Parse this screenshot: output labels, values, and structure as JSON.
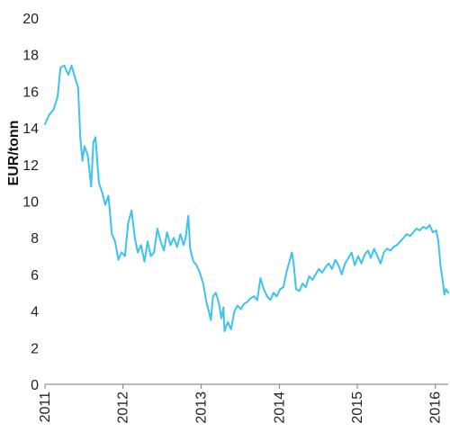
{
  "chart_data": {
    "type": "line",
    "title": "",
    "xlabel": "",
    "ylabel": "EUR/tonn",
    "ylim": [
      0,
      20
    ],
    "yticks": [
      "0",
      "2",
      "4",
      "6",
      "8",
      "10",
      "12",
      "14",
      "16",
      "18",
      "20"
    ],
    "xlim": [
      "2011-01-01",
      "2016-03-01"
    ],
    "xticks": [
      "2011",
      "2012",
      "2013",
      "2014",
      "2015",
      "2016"
    ],
    "grid": false,
    "series": [
      {
        "color": "#3cc3ee",
        "points": [
          [
            "2011-01-01",
            14.2
          ],
          [
            "2011-01-20",
            14.7
          ],
          [
            "2011-02-10",
            15.0
          ],
          [
            "2011-03-01",
            15.7
          ],
          [
            "2011-03-15",
            17.3
          ],
          [
            "2011-04-01",
            17.4
          ],
          [
            "2011-04-20",
            16.9
          ],
          [
            "2011-05-05",
            17.4
          ],
          [
            "2011-05-20",
            16.8
          ],
          [
            "2011-06-05",
            16.2
          ],
          [
            "2011-06-15",
            13.5
          ],
          [
            "2011-06-25",
            12.2
          ],
          [
            "2011-07-05",
            13.0
          ],
          [
            "2011-07-20",
            12.5
          ],
          [
            "2011-08-05",
            10.8
          ],
          [
            "2011-08-15",
            13.2
          ],
          [
            "2011-08-25",
            13.5
          ],
          [
            "2011-09-10",
            11.0
          ],
          [
            "2011-09-25",
            10.5
          ],
          [
            "2011-10-10",
            9.8
          ],
          [
            "2011-10-25",
            10.3
          ],
          [
            "2011-11-10",
            8.2
          ],
          [
            "2011-11-25",
            7.8
          ],
          [
            "2011-12-10",
            6.8
          ],
          [
            "2011-12-25",
            7.2
          ],
          [
            "2012-01-10",
            7.0
          ],
          [
            "2012-01-25",
            8.8
          ],
          [
            "2012-02-10",
            9.5
          ],
          [
            "2012-02-25",
            8.0
          ],
          [
            "2012-03-10",
            7.2
          ],
          [
            "2012-03-25",
            7.6
          ],
          [
            "2012-04-10",
            6.7
          ],
          [
            "2012-04-25",
            7.8
          ],
          [
            "2012-05-10",
            7.0
          ],
          [
            "2012-05-25",
            7.2
          ],
          [
            "2012-06-10",
            8.5
          ],
          [
            "2012-06-25",
            7.8
          ],
          [
            "2012-07-10",
            7.3
          ],
          [
            "2012-07-25",
            8.3
          ],
          [
            "2012-08-10",
            7.6
          ],
          [
            "2012-08-25",
            8.0
          ],
          [
            "2012-09-10",
            7.5
          ],
          [
            "2012-09-25",
            8.2
          ],
          [
            "2012-10-10",
            7.6
          ],
          [
            "2012-10-20",
            8.0
          ],
          [
            "2012-11-01",
            9.2
          ],
          [
            "2012-11-10",
            7.4
          ],
          [
            "2012-11-25",
            6.7
          ],
          [
            "2012-12-10",
            6.5
          ],
          [
            "2012-12-25",
            6.1
          ],
          [
            "2013-01-10",
            5.5
          ],
          [
            "2013-01-25",
            4.5
          ],
          [
            "2013-02-05",
            4.0
          ],
          [
            "2013-02-15",
            3.5
          ],
          [
            "2013-02-25",
            4.8
          ],
          [
            "2013-03-10",
            5.0
          ],
          [
            "2013-03-25",
            4.4
          ],
          [
            "2013-04-05",
            3.6
          ],
          [
            "2013-04-15",
            4.2
          ],
          [
            "2013-04-20",
            2.9
          ],
          [
            "2013-05-05",
            3.4
          ],
          [
            "2013-05-20",
            3.0
          ],
          [
            "2013-06-05",
            4.0
          ],
          [
            "2013-06-20",
            4.3
          ],
          [
            "2013-07-05",
            4.1
          ],
          [
            "2013-07-20",
            4.4
          ],
          [
            "2013-08-05",
            4.5
          ],
          [
            "2013-08-20",
            4.7
          ],
          [
            "2013-09-05",
            4.8
          ],
          [
            "2013-09-20",
            4.6
          ],
          [
            "2013-10-05",
            5.8
          ],
          [
            "2013-10-20",
            5.2
          ],
          [
            "2013-11-05",
            4.8
          ],
          [
            "2013-11-20",
            4.6
          ],
          [
            "2013-12-05",
            5.0
          ],
          [
            "2013-12-20",
            4.8
          ],
          [
            "2014-01-05",
            5.2
          ],
          [
            "2014-01-20",
            5.3
          ],
          [
            "2014-02-05",
            6.2
          ],
          [
            "2014-02-20",
            6.8
          ],
          [
            "2014-03-01",
            7.2
          ],
          [
            "2014-03-10",
            6.5
          ],
          [
            "2014-03-20",
            5.2
          ],
          [
            "2014-04-05",
            5.1
          ],
          [
            "2014-04-20",
            5.5
          ],
          [
            "2014-05-05",
            5.3
          ],
          [
            "2014-05-20",
            5.9
          ],
          [
            "2014-06-05",
            5.7
          ],
          [
            "2014-06-20",
            6.0
          ],
          [
            "2014-07-05",
            6.3
          ],
          [
            "2014-07-20",
            6.1
          ],
          [
            "2014-08-05",
            6.4
          ],
          [
            "2014-08-20",
            6.6
          ],
          [
            "2014-09-05",
            6.3
          ],
          [
            "2014-09-20",
            6.8
          ],
          [
            "2014-10-05",
            6.5
          ],
          [
            "2014-10-20",
            6.0
          ],
          [
            "2014-11-05",
            6.6
          ],
          [
            "2014-11-20",
            6.9
          ],
          [
            "2014-12-05",
            7.2
          ],
          [
            "2014-12-20",
            6.5
          ],
          [
            "2015-01-05",
            7.0
          ],
          [
            "2015-01-20",
            6.6
          ],
          [
            "2015-02-05",
            7.1
          ],
          [
            "2015-02-20",
            7.3
          ],
          [
            "2015-03-05",
            6.9
          ],
          [
            "2015-03-20",
            7.4
          ],
          [
            "2015-04-05",
            7.0
          ],
          [
            "2015-04-20",
            6.6
          ],
          [
            "2015-05-05",
            7.2
          ],
          [
            "2015-05-20",
            7.4
          ],
          [
            "2015-06-05",
            7.3
          ],
          [
            "2015-06-20",
            7.5
          ],
          [
            "2015-07-05",
            7.6
          ],
          [
            "2015-07-20",
            7.8
          ],
          [
            "2015-08-05",
            8.0
          ],
          [
            "2015-08-20",
            8.2
          ],
          [
            "2015-09-05",
            8.1
          ],
          [
            "2015-09-20",
            8.3
          ],
          [
            "2015-10-05",
            8.5
          ],
          [
            "2015-10-20",
            8.4
          ],
          [
            "2015-11-05",
            8.6
          ],
          [
            "2015-11-20",
            8.5
          ],
          [
            "2015-12-05",
            8.7
          ],
          [
            "2015-12-20",
            8.3
          ],
          [
            "2016-01-05",
            8.4
          ],
          [
            "2016-01-15",
            7.8
          ],
          [
            "2016-01-25",
            6.5
          ],
          [
            "2016-02-05",
            5.6
          ],
          [
            "2016-02-12",
            4.9
          ],
          [
            "2016-02-20",
            5.2
          ],
          [
            "2016-03-01",
            5.0
          ]
        ]
      }
    ]
  }
}
